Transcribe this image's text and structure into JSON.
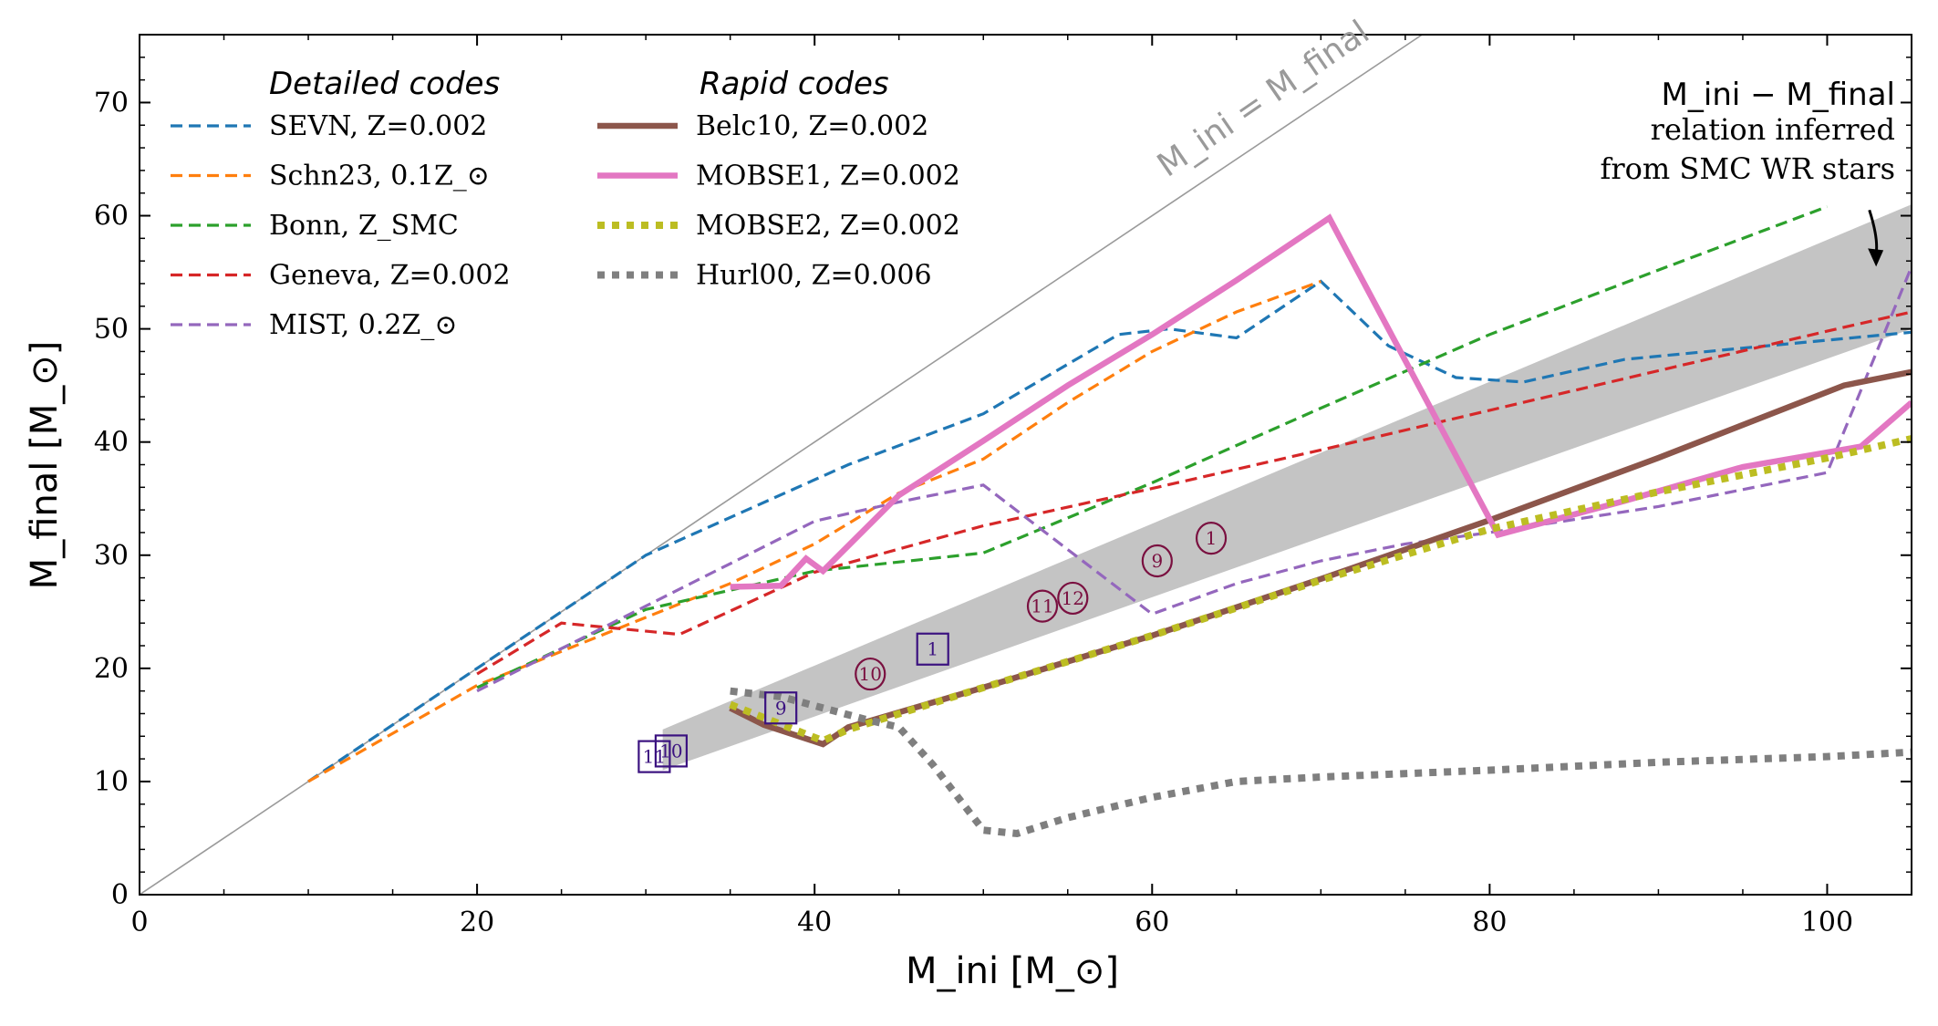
{
  "chart_data": {
    "type": "line",
    "xlabel": "M_ini [M_⊙]",
    "ylabel": "M_final [M_⊙]",
    "xlim": [
      0,
      105
    ],
    "ylim": [
      0,
      76
    ],
    "xticks": [
      0,
      20,
      40,
      60,
      80,
      100
    ],
    "yticks": [
      0,
      10,
      20,
      30,
      40,
      50,
      60,
      70
    ],
    "legend_groups": {
      "detailed": "Detailed codes",
      "rapid": "Rapid codes"
    },
    "identity_label": "M_ini = M_final",
    "annotation": {
      "title": "M_ini − M_final",
      "line2": "relation inferred",
      "line3": "from SMC WR stars",
      "arrow_from": [
        102.5,
        60.5
      ],
      "arrow_to": [
        102.9,
        55.5
      ]
    },
    "band": {
      "name": "SMC WR inferred relation",
      "x": [
        31,
        105
      ],
      "lower": [
        11.0,
        50.0
      ],
      "upper": [
        14.6,
        61.0
      ]
    },
    "series": [
      {
        "name": "SEVN, Z=0.002",
        "label_main": "SEVN, Z=0.002",
        "group": "detailed",
        "color": "#1f77b4",
        "style": "dashed",
        "x": [
          10,
          20,
          30,
          42,
          50,
          58,
          61,
          65,
          70,
          74,
          78,
          82,
          88,
          95,
          105
        ],
        "y": [
          10,
          20,
          30,
          38,
          42.5,
          49.5,
          50,
          49.2,
          54.2,
          48.5,
          45.7,
          45.3,
          47.3,
          48.3,
          49.7
        ]
      },
      {
        "name": "Schn23, 0.1Z_⊙",
        "label_main": "Schn23, 0.1Z",
        "group": "detailed",
        "color": "#ff7f0e",
        "style": "dashed",
        "x": [
          10,
          20,
          30,
          35,
          40,
          45,
          50,
          55,
          60,
          65,
          70
        ],
        "y": [
          10,
          18.5,
          24.5,
          27.5,
          31,
          35.5,
          38.5,
          43.5,
          48,
          51.5,
          54.2
        ]
      },
      {
        "name": "Bonn, Z_SMC",
        "label_main": "Bonn, Z",
        "group": "detailed",
        "color": "#2ca02c",
        "style": "dashed",
        "x": [
          20,
          30,
          40,
          50,
          60,
          70,
          80,
          90,
          100
        ],
        "y": [
          18.3,
          25.2,
          28.6,
          30.2,
          36.4,
          43.0,
          49.5,
          55.2,
          60.8
        ]
      },
      {
        "name": "Geneva, Z=0.002",
        "label_main": "Geneva, Z=0.002",
        "group": "detailed",
        "color": "#d62728",
        "style": "dashed",
        "x": [
          20,
          25,
          32,
          40,
          50,
          60,
          70,
          80,
          90,
          100,
          105
        ],
        "y": [
          19.5,
          24,
          23,
          28.5,
          32.6,
          35.9,
          39.3,
          42.8,
          46.3,
          49.8,
          51.5
        ]
      },
      {
        "name": "MIST, 0.2Z_⊙",
        "label_main": "MIST, 0.2Z",
        "group": "detailed",
        "color": "#9467bd",
        "style": "dashed",
        "x": [
          20,
          30,
          40,
          45,
          50,
          55,
          60,
          65,
          70,
          75,
          80,
          90,
          100,
          105
        ],
        "y": [
          18,
          25.5,
          33,
          34.7,
          36.2,
          30.5,
          24.8,
          27.5,
          29.5,
          31,
          32,
          34.3,
          37.3,
          55.5
        ]
      },
      {
        "name": "Belc10, Z=0.002",
        "label_main": "Belc10, Z=0.002",
        "group": "rapid",
        "color": "#8c564b",
        "style": "solid-thick",
        "x": [
          35,
          37,
          40.5,
          42,
          50,
          60,
          70,
          80,
          90,
          101,
          105
        ],
        "y": [
          16.5,
          15.0,
          13.3,
          14.8,
          18.3,
          22.9,
          27.9,
          33.1,
          38.6,
          45.0,
          46.2
        ]
      },
      {
        "name": "MOBSE1, Z=0.002",
        "label_main": "MOBSE1, Z=0.002",
        "group": "rapid",
        "color": "#e377c2",
        "style": "solid-thick",
        "x": [
          35,
          38,
          39.5,
          40.5,
          45,
          50,
          55,
          60,
          65,
          70.5,
          80.5,
          88,
          95,
          102,
          105
        ],
        "y": [
          27.2,
          27.3,
          29.7,
          28.6,
          35.3,
          40.1,
          45.0,
          49.5,
          54.3,
          59.8,
          31.8,
          34.8,
          37.8,
          39.6,
          43.5
        ]
      },
      {
        "name": "MOBSE2, Z=0.002",
        "label_main": "MOBSE2, Z=0.002",
        "group": "rapid",
        "color": "#bcbd22",
        "style": "dotted",
        "x": [
          35,
          40.5,
          42,
          50,
          60,
          70,
          80,
          90,
          100,
          105
        ],
        "y": [
          16.8,
          13.6,
          14.6,
          18.3,
          22.9,
          27.8,
          32.3,
          35.6,
          38.6,
          40.3
        ]
      },
      {
        "name": "Hurl00, Z=0.006",
        "label_main": "Hurl00, Z=0.006",
        "group": "rapid",
        "color": "#7f7f7f",
        "style": "dotted",
        "x": [
          35,
          38,
          41,
          43,
          45,
          47,
          50,
          52,
          55,
          60,
          65,
          70,
          80,
          90,
          100,
          105
        ],
        "y": [
          18,
          17.5,
          16.3,
          15.5,
          14.8,
          11.5,
          5.7,
          5.4,
          6.8,
          8.6,
          10.0,
          10.4,
          11.0,
          11.7,
          12.2,
          12.6
        ]
      }
    ],
    "markers_circle": [
      {
        "label": "1",
        "x": 63.5,
        "y": 31.5
      },
      {
        "label": "9",
        "x": 60.3,
        "y": 29.5
      },
      {
        "label": "10",
        "x": 43.3,
        "y": 19.5
      },
      {
        "label": "11",
        "x": 53.5,
        "y": 25.5
      },
      {
        "label": "12",
        "x": 55.3,
        "y": 26.2
      }
    ],
    "markers_square": [
      {
        "label": "1",
        "x": 47.0,
        "y": 21.7
      },
      {
        "label": "9",
        "x": 38.0,
        "y": 16.5
      },
      {
        "label": "10",
        "x": 31.5,
        "y": 12.7
      },
      {
        "label": "11",
        "x": 30.5,
        "y": 12.2
      }
    ]
  }
}
